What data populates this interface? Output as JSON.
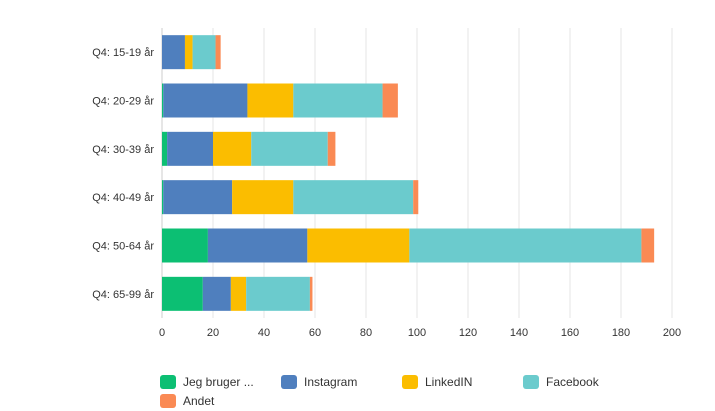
{
  "chart_data": {
    "type": "bar",
    "orientation": "horizontal",
    "stacked": true,
    "categories": [
      "Q4: 15-19 år",
      "Q4: 20-29 år",
      "Q4: 30-39 år",
      "Q4: 40-49 år",
      "Q4: 50-64 år",
      "Q4: 65-99 år"
    ],
    "series": [
      {
        "name": "Jeg bruger ...",
        "color": "#0cbf73",
        "values": [
          0,
          0.5,
          2,
          0.5,
          18,
          16
        ]
      },
      {
        "name": "Instagram",
        "color": "#4f7fbe",
        "values": [
          9,
          33,
          18,
          27,
          39,
          11
        ]
      },
      {
        "name": "LinkedIN",
        "color": "#fbbd00",
        "values": [
          3,
          18,
          15,
          24,
          40,
          6
        ]
      },
      {
        "name": "Facebook",
        "color": "#6bcbcd",
        "values": [
          9,
          35,
          30,
          47,
          91,
          25
        ]
      },
      {
        "name": "Andet",
        "color": "#fa8a54",
        "values": [
          2,
          6,
          3,
          2,
          5,
          1
        ]
      }
    ],
    "xlim": [
      0,
      200
    ],
    "xticks": [
      "0",
      "20",
      "40",
      "60",
      "80",
      "100",
      "120",
      "140",
      "160",
      "180",
      "200"
    ],
    "grid": true,
    "legend_position": "bottom"
  }
}
